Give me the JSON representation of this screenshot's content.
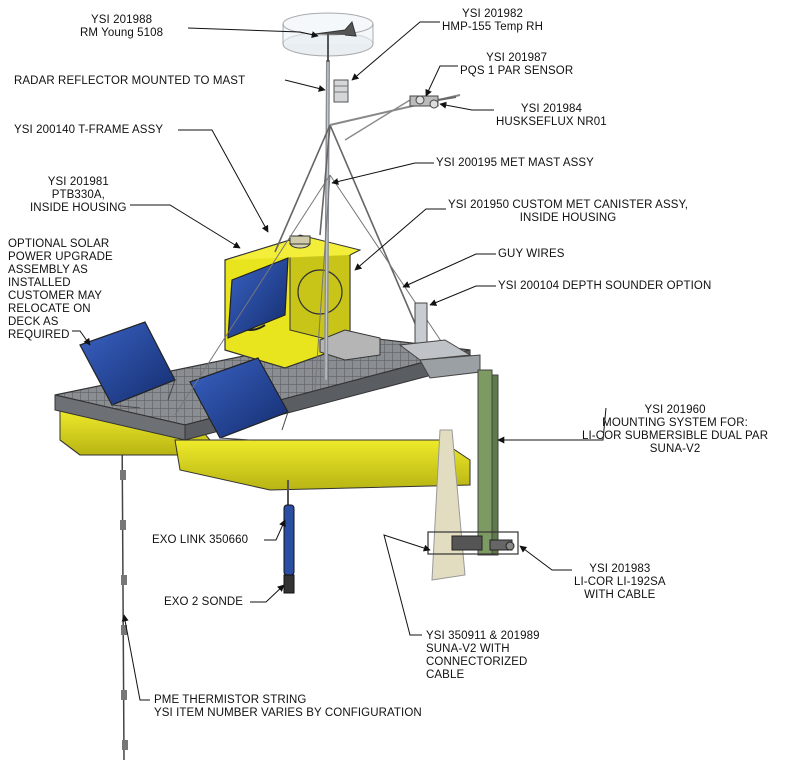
{
  "labels": {
    "rm_young": {
      "lines": [
        "YSI 201988",
        "RM Young 5108"
      ]
    },
    "hmp155": {
      "lines": [
        "YSI 201982",
        "HMP-155 Temp RH"
      ]
    },
    "radar": {
      "lines": [
        "RADAR REFLECTOR MOUNTED TO MAST"
      ]
    },
    "pqs1": {
      "lines": [
        "YSI 201987",
        "PQS 1 PAR SENSOR"
      ]
    },
    "nr01": {
      "lines": [
        "YSI 201984",
        "HUSKSEFLUX  NR01"
      ]
    },
    "tframe": {
      "lines": [
        "YSI 200140 T-FRAME ASSY"
      ]
    },
    "met_mast": {
      "lines": [
        "YSI 200195 MET MAST ASSY"
      ]
    },
    "ptb330a": {
      "lines": [
        "YSI 201981",
        "PTB330A,",
        "INSIDE HOUSING"
      ]
    },
    "canister": {
      "lines": [
        "YSI 201950 CUSTOM MET CANISTER ASSY,",
        "INSIDE HOUSING"
      ]
    },
    "solar": {
      "lines": [
        "OPTIONAL SOLAR",
        "POWER UPGRADE",
        "ASSEMBLY AS",
        "INSTALLED",
        "CUSTOMER MAY",
        "RELOCATE ON",
        "DECK AS",
        "REQUIRED"
      ]
    },
    "guy_wires": {
      "lines": [
        "GUY WIRES"
      ]
    },
    "depth_sounder": {
      "lines": [
        "YSI 200104 DEPTH SOUNDER OPTION"
      ]
    },
    "mounting": {
      "lines": [
        "YSI 201960",
        "MOUNTING SYSTEM FOR:",
        "LI-COR SUBMERSIBLE DUAL PAR",
        "SUNA-V2"
      ]
    },
    "exo_link": {
      "lines": [
        "EXO LINK 350660"
      ]
    },
    "exo2": {
      "lines": [
        "EXO 2 SONDE"
      ]
    },
    "licor": {
      "lines": [
        "YSI 201983",
        "LI-COR LI-192SA",
        "WITH CABLE"
      ]
    },
    "suna": {
      "lines": [
        "YSI   350911 & 201989",
        "SUNA-V2 WITH",
        "CONNECTORIZED",
        "CABLE"
      ]
    },
    "pme": {
      "lines": [
        "PME THERMISTOR STRING",
        "YSI ITEM NUMBER VARIES BY CONFIGURATION"
      ]
    }
  },
  "colors": {
    "hull": "#e6e21a",
    "hull_shadow": "#b9b516",
    "deck": "#7f8387",
    "deck_grate": "#5d6165",
    "panel": "#1f3d8c",
    "mast": "#9a9ea2",
    "sonde": "#2a4ea3",
    "leader": "#111111"
  }
}
